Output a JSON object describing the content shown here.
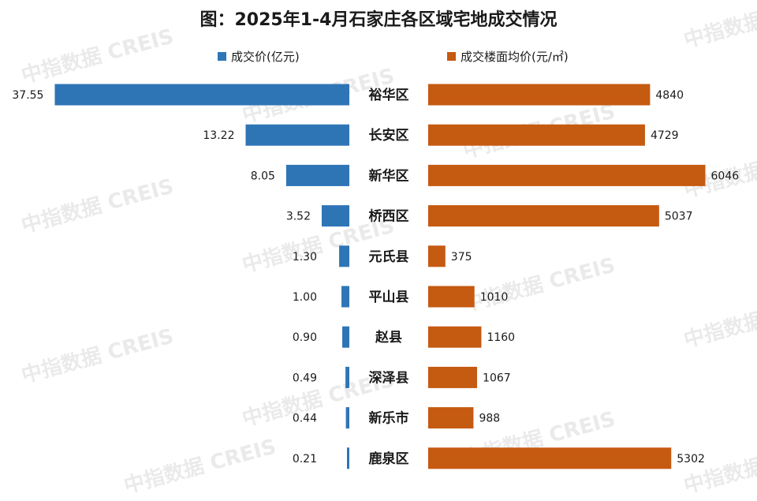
{
  "title": "图：2025年1-4月石家庄各区域宅地成交情况",
  "watermark": "中指数据 CREIS",
  "colors": {
    "left_bar": "#2E75B6",
    "right_bar": "#C55A11",
    "title": "#1a1a1a",
    "label": "#1a1a1a",
    "watermark": "#d9d9d9"
  },
  "chart_data": {
    "type": "bar",
    "orientation": "horizontal",
    "layout": "butterfly",
    "title": "图：2025年1-4月石家庄各区域宅地成交情况",
    "categories": [
      "裕华区",
      "长安区",
      "新华区",
      "桥西区",
      "元氏县",
      "平山县",
      "赵县",
      "深泽县",
      "新乐市",
      "鹿泉区"
    ],
    "series": [
      {
        "name": "成交价(亿元)",
        "side": "left",
        "color": "#2E75B6",
        "values": [
          37.55,
          13.22,
          8.05,
          3.52,
          1.3,
          1.0,
          0.9,
          0.49,
          0.44,
          0.21
        ],
        "labels": [
          "37.55",
          "13.22",
          "8.05",
          "3.52",
          "1.30",
          "1.00",
          "0.90",
          "0.49",
          "0.44",
          "0.21"
        ],
        "xlim": [
          0,
          38
        ]
      },
      {
        "name": "成交楼面均价(元/㎡)",
        "side": "right",
        "color": "#C55A11",
        "values": [
          4840,
          4729,
          6046,
          5037,
          375,
          1010,
          1160,
          1067,
          988,
          5302
        ],
        "labels": [
          "4840",
          "4729",
          "6046",
          "5037",
          "375",
          "1010",
          "1160",
          "1067",
          "988",
          "5302"
        ],
        "xlim": [
          0,
          6450
        ]
      }
    ],
    "legend": "top",
    "grid": false,
    "xlabel": "",
    "ylabel": ""
  }
}
